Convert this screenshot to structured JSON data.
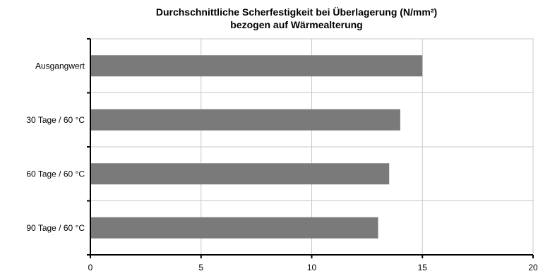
{
  "chart_data": {
    "type": "bar",
    "orientation": "horizontal",
    "title": "Durchschnittliche Scherfestigkeit bei Überlagerung (N/mm²)",
    "subtitle": "bezogen auf Wärmealterung",
    "categories": [
      "Ausgangwert",
      "30 Tage / 60 °C",
      "60 Tage / 60 °C",
      "90 Tage / 60 °C"
    ],
    "values": [
      15,
      14,
      13.5,
      13
    ],
    "xlim": [
      0,
      20
    ],
    "xticks": [
      0,
      5,
      10,
      15,
      20
    ],
    "xlabel": "",
    "ylabel": "",
    "grid": true,
    "bar_color": "#7a7a7a",
    "legend": "none"
  }
}
